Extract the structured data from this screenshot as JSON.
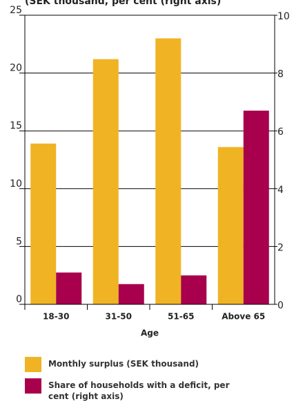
{
  "chart_data": {
    "type": "bar",
    "subtitle": "(SEK thousand, per cent (right axis)",
    "xlabel": "Age",
    "categories": [
      "18-30",
      "31-50",
      "51-65",
      "Above 65"
    ],
    "series": [
      {
        "name": "Monthly surplus (SEK thousand)",
        "color": "#f0b323",
        "values": [
          13.9,
          21.2,
          23.0,
          13.6
        ]
      },
      {
        "name": "Share of households with a deficit, per cent (right axis)",
        "color": "#a8004c",
        "values": [
          1.1,
          0.7,
          1.0,
          6.7
        ],
        "axis": "y2"
      }
    ],
    "ylim": [
      0,
      25
    ],
    "yticks": [
      0,
      5,
      10,
      15,
      20,
      25
    ],
    "y2lim": [
      0,
      10
    ],
    "y2ticks": [
      0,
      2,
      4,
      6,
      8,
      10
    ],
    "grid": true
  }
}
